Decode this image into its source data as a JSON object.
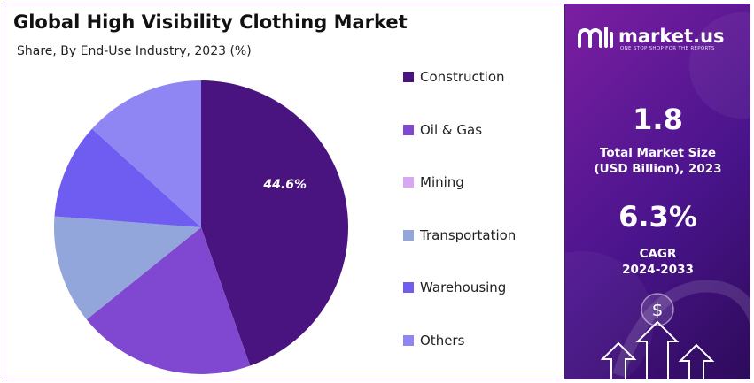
{
  "chart_data": {
    "type": "pie",
    "title": "Global High Visibility Clothing Market",
    "subtitle": "Share, By End-Use Industry, 2023 (%)",
    "categories": [
      "Construction",
      "Oil & Gas",
      "Mining",
      "Transportation",
      "Warehousing",
      "Others"
    ],
    "values": [
      44.6,
      19.6,
      0,
      12.0,
      10.5,
      13.3
    ],
    "data_labels": [
      "44.6%",
      "",
      "",
      "",
      "",
      ""
    ],
    "colors": [
      "#4a1480",
      "#8048d0",
      "#d9a6f2",
      "#92a6dc",
      "#6f5cf0",
      "#8f86f3"
    ],
    "start_angle_deg": 0,
    "direction": "clockwise",
    "legend_position": "right"
  },
  "panel": {
    "brand_name": "market.us",
    "brand_tagline": "ONE STOP SHOP FOR THE REPORTS",
    "market_size_value": "1.8",
    "market_size_label_1": "Total Market Size",
    "market_size_label_2": "(USD Billion), 2023",
    "cagr_value": "6.3%",
    "cagr_label_1": "CAGR",
    "cagr_label_2": "2024-2033",
    "dollar_symbol": "$",
    "logo_icon": "market-us-logo-icon",
    "chart_icon": "growth-arrows-icon"
  }
}
